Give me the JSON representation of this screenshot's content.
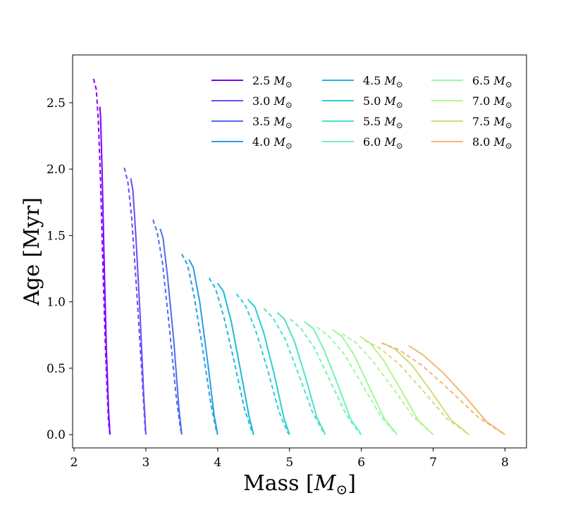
{
  "chart_data": {
    "type": "line",
    "title": "",
    "xlabel": "Mass [M⊙]",
    "xlabel_parts": {
      "main": "Mass [",
      "symbol": "M",
      "sub": "⊙",
      "close": "]"
    },
    "ylabel": "Age [Myr]",
    "xlim": [
      1.98,
      8.3
    ],
    "ylim": [
      -0.1,
      2.86
    ],
    "xticks": [
      2,
      3,
      4,
      5,
      6,
      7,
      8
    ],
    "xtick_labels": [
      "2",
      "3",
      "4",
      "5",
      "6",
      "7",
      "8"
    ],
    "yticks": [
      0.0,
      0.5,
      1.0,
      1.5,
      2.0,
      2.5
    ],
    "ytick_labels": [
      "0.0",
      "0.5",
      "1.0",
      "1.5",
      "2.0",
      "2.5"
    ],
    "grid": false,
    "legend_position": "top-right",
    "legend_columns": 3,
    "series": [
      {
        "name": "2.5 M⊙",
        "label_value": "2.5",
        "color": "#8000ff",
        "solid": [
          [
            2.36,
            2.47
          ],
          [
            2.37,
            2.39
          ],
          [
            2.39,
            2.0
          ],
          [
            2.42,
            1.3
          ],
          [
            2.45,
            0.65
          ],
          [
            2.48,
            0.2
          ],
          [
            2.5,
            0.0
          ]
        ],
        "dashed": [
          [
            2.27,
            2.68
          ],
          [
            2.31,
            2.6
          ],
          [
            2.34,
            2.35
          ],
          [
            2.37,
            1.9
          ],
          [
            2.4,
            1.3
          ],
          [
            2.44,
            0.6
          ],
          [
            2.48,
            0.1
          ],
          [
            2.5,
            0.0
          ]
        ]
      },
      {
        "name": "3.0 M⊙",
        "label_value": "3.0",
        "color": "#6a4cf9",
        "solid": [
          [
            2.79,
            1.93
          ],
          [
            2.82,
            1.84
          ],
          [
            2.86,
            1.5
          ],
          [
            2.92,
            0.9
          ],
          [
            2.97,
            0.3
          ],
          [
            3.0,
            0.0
          ]
        ],
        "dashed": [
          [
            2.7,
            2.01
          ],
          [
            2.75,
            1.9
          ],
          [
            2.8,
            1.65
          ],
          [
            2.87,
            1.1
          ],
          [
            2.94,
            0.5
          ],
          [
            2.99,
            0.05
          ],
          [
            3.0,
            0.0
          ]
        ]
      },
      {
        "name": "3.5 M⊙",
        "label_value": "3.5",
        "color": "#4f6cf0",
        "solid": [
          [
            3.2,
            1.55
          ],
          [
            3.24,
            1.48
          ],
          [
            3.3,
            1.2
          ],
          [
            3.39,
            0.7
          ],
          [
            3.46,
            0.2
          ],
          [
            3.5,
            0.0
          ]
        ],
        "dashed": [
          [
            3.1,
            1.62
          ],
          [
            3.16,
            1.52
          ],
          [
            3.23,
            1.3
          ],
          [
            3.32,
            0.85
          ],
          [
            3.42,
            0.3
          ],
          [
            3.48,
            0.05
          ],
          [
            3.5,
            0.0
          ]
        ]
      },
      {
        "name": "4.0 M⊙",
        "label_value": "4.0",
        "color": "#2a9de4",
        "solid": [
          [
            3.6,
            1.32
          ],
          [
            3.66,
            1.26
          ],
          [
            3.75,
            1.0
          ],
          [
            3.86,
            0.55
          ],
          [
            3.95,
            0.15
          ],
          [
            4.0,
            0.0
          ]
        ],
        "dashed": [
          [
            3.5,
            1.36
          ],
          [
            3.58,
            1.28
          ],
          [
            3.67,
            1.05
          ],
          [
            3.79,
            0.65
          ],
          [
            3.9,
            0.25
          ],
          [
            3.98,
            0.03
          ],
          [
            4.0,
            0.0
          ]
        ]
      },
      {
        "name": "4.5 M⊙",
        "label_value": "4.5",
        "color": "#1cb9dd",
        "solid": [
          [
            4.0,
            1.14
          ],
          [
            4.08,
            1.08
          ],
          [
            4.19,
            0.85
          ],
          [
            4.32,
            0.48
          ],
          [
            4.44,
            0.13
          ],
          [
            4.5,
            0.0
          ]
        ],
        "dashed": [
          [
            3.88,
            1.18
          ],
          [
            3.97,
            1.1
          ],
          [
            4.09,
            0.88
          ],
          [
            4.23,
            0.55
          ],
          [
            4.37,
            0.2
          ],
          [
            4.48,
            0.02
          ],
          [
            4.5,
            0.0
          ]
        ]
      },
      {
        "name": "5.0 M⊙",
        "label_value": "5.0",
        "color": "#2bcfd3",
        "solid": [
          [
            4.42,
            1.02
          ],
          [
            4.52,
            0.96
          ],
          [
            4.64,
            0.77
          ],
          [
            4.79,
            0.45
          ],
          [
            4.92,
            0.13
          ],
          [
            5.0,
            0.0
          ]
        ],
        "dashed": [
          [
            4.26,
            1.06
          ],
          [
            4.38,
            0.98
          ],
          [
            4.52,
            0.8
          ],
          [
            4.69,
            0.5
          ],
          [
            4.85,
            0.18
          ],
          [
            4.97,
            0.02
          ],
          [
            5.0,
            0.0
          ]
        ]
      },
      {
        "name": "5.5 M⊙",
        "label_value": "5.5",
        "color": "#4ce2c8",
        "solid": [
          [
            4.83,
            0.92
          ],
          [
            4.93,
            0.87
          ],
          [
            5.07,
            0.7
          ],
          [
            5.23,
            0.42
          ],
          [
            5.38,
            0.13
          ],
          [
            5.5,
            0.0
          ]
        ],
        "dashed": [
          [
            4.64,
            0.95
          ],
          [
            4.77,
            0.88
          ],
          [
            4.94,
            0.72
          ],
          [
            5.13,
            0.45
          ],
          [
            5.32,
            0.17
          ],
          [
            5.47,
            0.02
          ],
          [
            5.5,
            0.0
          ]
        ]
      },
      {
        "name": "6.0 M⊙",
        "label_value": "6.0",
        "color": "#71f2b6",
        "solid": [
          [
            5.21,
            0.85
          ],
          [
            5.33,
            0.8
          ],
          [
            5.48,
            0.64
          ],
          [
            5.67,
            0.38
          ],
          [
            5.85,
            0.12
          ],
          [
            6.0,
            0.0
          ]
        ],
        "dashed": [
          [
            5.01,
            0.87
          ],
          [
            5.16,
            0.8
          ],
          [
            5.35,
            0.65
          ],
          [
            5.57,
            0.4
          ],
          [
            5.79,
            0.15
          ],
          [
            5.96,
            0.02
          ],
          [
            6.0,
            0.0
          ]
        ]
      },
      {
        "name": "6.5 M⊙",
        "label_value": "6.5",
        "color": "#99f9a2",
        "solid": [
          [
            5.6,
            0.79
          ],
          [
            5.73,
            0.74
          ],
          [
            5.9,
            0.6
          ],
          [
            6.11,
            0.36
          ],
          [
            6.32,
            0.12
          ],
          [
            6.5,
            0.0
          ]
        ],
        "dashed": [
          [
            5.38,
            0.81
          ],
          [
            5.55,
            0.74
          ],
          [
            5.77,
            0.6
          ],
          [
            6.02,
            0.37
          ],
          [
            6.27,
            0.14
          ],
          [
            6.46,
            0.02
          ],
          [
            6.5,
            0.0
          ]
        ]
      },
      {
        "name": "7.0 M⊙",
        "label_value": "7.0",
        "color": "#b5f48e",
        "solid": [
          [
            5.98,
            0.74
          ],
          [
            6.12,
            0.69
          ],
          [
            6.31,
            0.56
          ],
          [
            6.55,
            0.34
          ],
          [
            6.79,
            0.11
          ],
          [
            7.0,
            0.0
          ]
        ],
        "dashed": [
          [
            5.73,
            0.76
          ],
          [
            5.91,
            0.7
          ],
          [
            6.15,
            0.56
          ],
          [
            6.44,
            0.35
          ],
          [
            6.73,
            0.13
          ],
          [
            6.96,
            0.02
          ],
          [
            7.0,
            0.0
          ]
        ]
      },
      {
        "name": "7.5 M⊙",
        "label_value": "7.5",
        "color": "#d1dc7c",
        "solid": [
          [
            6.3,
            0.69
          ],
          [
            6.48,
            0.64
          ],
          [
            6.71,
            0.52
          ],
          [
            6.98,
            0.32
          ],
          [
            7.25,
            0.11
          ],
          [
            7.5,
            0.0
          ]
        ],
        "dashed": [
          [
            6.05,
            0.71
          ],
          [
            6.26,
            0.65
          ],
          [
            6.53,
            0.53
          ],
          [
            6.86,
            0.33
          ],
          [
            7.19,
            0.12
          ],
          [
            7.45,
            0.02
          ],
          [
            7.5,
            0.0
          ]
        ]
      },
      {
        "name": "8.0 M⊙",
        "label_value": "8.0",
        "color": "#f2b872",
        "solid": [
          [
            6.66,
            0.67
          ],
          [
            6.86,
            0.6
          ],
          [
            7.13,
            0.47
          ],
          [
            7.44,
            0.29
          ],
          [
            7.74,
            0.1
          ],
          [
            8.0,
            0.0
          ]
        ],
        "dashed": [
          [
            6.28,
            0.69
          ],
          [
            6.52,
            0.64
          ],
          [
            6.85,
            0.52
          ],
          [
            7.24,
            0.33
          ],
          [
            7.63,
            0.13
          ],
          [
            7.94,
            0.02
          ],
          [
            8.0,
            0.0
          ]
        ]
      }
    ]
  }
}
